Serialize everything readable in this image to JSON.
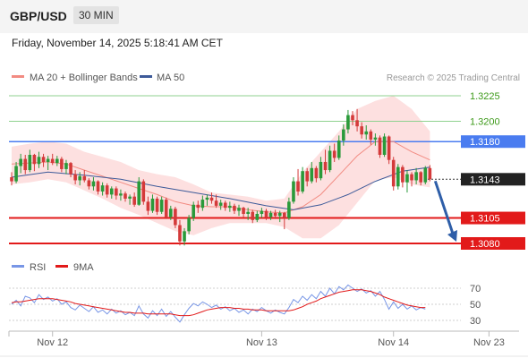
{
  "header": {
    "symbol": "GBP/USD",
    "timeframe": "30 MIN",
    "datetime": "Friday, November 14, 2025 5:18:41 AM CET"
  },
  "chart_data": {
    "type": "candlestick",
    "legend": [
      {
        "name": "MA 20 + Bollinger Bands",
        "color": "#f28b82"
      },
      {
        "name": "MA 50",
        "color": "#3d5a99"
      }
    ],
    "credit": "Research © 2025 Trading Central",
    "price_levels": [
      {
        "label": "1.3225",
        "value": 1.3225,
        "kind": "line-green"
      },
      {
        "label": "1.3200",
        "value": 1.32,
        "kind": "line-green"
      },
      {
        "label": "1.3180",
        "value": 1.318,
        "kind": "line-blue"
      },
      {
        "label": "1.3143",
        "value": 1.3143,
        "kind": "current"
      },
      {
        "label": "1.3105",
        "value": 1.3105,
        "kind": "line-red"
      },
      {
        "label": "1.3080",
        "value": 1.308,
        "kind": "line-red"
      }
    ],
    "colors": {
      "up": "#2a9a3a",
      "down": "#d43a3a",
      "band": "#fde0e0",
      "ma20": "#f28b82",
      "ma50": "#3d5a99",
      "green_level": "#8fd18f",
      "blue_level": "#4a7cf0",
      "red_level": "#e21a1a",
      "level_label_green": "#3d9a1a",
      "arrow": "#2e5ea8",
      "rsi": "#7896e6",
      "rsi_ma": "#e21a1a"
    },
    "candles": [
      [
        1.3145,
        1.315,
        1.3137,
        1.3141
      ],
      [
        1.3141,
        1.316,
        1.3139,
        1.3156
      ],
      [
        1.3156,
        1.3168,
        1.3149,
        1.3163
      ],
      [
        1.3163,
        1.3167,
        1.3148,
        1.3152
      ],
      [
        1.3152,
        1.3172,
        1.315,
        1.3167
      ],
      [
        1.3167,
        1.3168,
        1.3151,
        1.3158
      ],
      [
        1.3158,
        1.317,
        1.3154,
        1.3165
      ],
      [
        1.3165,
        1.3168,
        1.3155,
        1.316
      ],
      [
        1.316,
        1.3166,
        1.3152,
        1.3163
      ],
      [
        1.3163,
        1.3168,
        1.3157,
        1.3159
      ],
      [
        1.3159,
        1.3166,
        1.3156,
        1.3163
      ],
      [
        1.3163,
        1.3165,
        1.315,
        1.3153
      ],
      [
        1.3153,
        1.3162,
        1.3148,
        1.3159
      ],
      [
        1.3159,
        1.316,
        1.3145,
        1.3148
      ],
      [
        1.3148,
        1.3152,
        1.3138,
        1.3142
      ],
      [
        1.3142,
        1.315,
        1.3137,
        1.3146
      ],
      [
        1.3146,
        1.3152,
        1.314,
        1.3142
      ],
      [
        1.3142,
        1.3144,
        1.3133,
        1.3136
      ],
      [
        1.3136,
        1.3145,
        1.3132,
        1.3141
      ],
      [
        1.3141,
        1.3142,
        1.3128,
        1.3131
      ],
      [
        1.3131,
        1.314,
        1.3127,
        1.3137
      ],
      [
        1.3137,
        1.3139,
        1.3125,
        1.3128
      ],
      [
        1.3128,
        1.3136,
        1.3124,
        1.3134
      ],
      [
        1.3134,
        1.3136,
        1.3123,
        1.3127
      ],
      [
        1.3127,
        1.3133,
        1.3122,
        1.3129
      ],
      [
        1.3129,
        1.3131,
        1.3121,
        1.3124
      ],
      [
        1.3124,
        1.3128,
        1.3118,
        1.3126
      ],
      [
        1.3126,
        1.313,
        1.3116,
        1.3118
      ],
      [
        1.3118,
        1.3145,
        1.3117,
        1.3141
      ],
      [
        1.3141,
        1.3143,
        1.3118,
        1.3121
      ],
      [
        1.3121,
        1.3126,
        1.3108,
        1.3112
      ],
      [
        1.3112,
        1.3128,
        1.311,
        1.3124
      ],
      [
        1.3124,
        1.3126,
        1.3108,
        1.3111
      ],
      [
        1.3111,
        1.3126,
        1.3109,
        1.3123
      ],
      [
        1.3123,
        1.3125,
        1.3104,
        1.3106
      ],
      [
        1.3106,
        1.3117,
        1.3103,
        1.3114
      ],
      [
        1.3114,
        1.3116,
        1.3095,
        1.3098
      ],
      [
        1.3098,
        1.3103,
        1.3078,
        1.3082
      ],
      [
        1.3082,
        1.3095,
        1.3078,
        1.3092
      ],
      [
        1.3092,
        1.3108,
        1.3089,
        1.3105
      ],
      [
        1.3105,
        1.3121,
        1.3102,
        1.3118
      ],
      [
        1.3118,
        1.3122,
        1.311,
        1.3115
      ],
      [
        1.3115,
        1.3127,
        1.3112,
        1.3123
      ],
      [
        1.3123,
        1.3128,
        1.3117,
        1.3125
      ],
      [
        1.3125,
        1.313,
        1.3119,
        1.3122
      ],
      [
        1.3122,
        1.3128,
        1.3115,
        1.3117
      ],
      [
        1.3117,
        1.3123,
        1.3113,
        1.312
      ],
      [
        1.312,
        1.3122,
        1.3112,
        1.3115
      ],
      [
        1.3115,
        1.3121,
        1.3111,
        1.3117
      ],
      [
        1.3117,
        1.3119,
        1.3109,
        1.3112
      ],
      [
        1.3112,
        1.3118,
        1.3107,
        1.3115
      ],
      [
        1.3115,
        1.3116,
        1.3106,
        1.3109
      ],
      [
        1.3109,
        1.3115,
        1.3103,
        1.3111
      ],
      [
        1.3111,
        1.3113,
        1.31,
        1.3103
      ],
      [
        1.3103,
        1.3112,
        1.3101,
        1.3109
      ],
      [
        1.3109,
        1.3115,
        1.3105,
        1.3112
      ],
      [
        1.3112,
        1.3114,
        1.3103,
        1.3106
      ],
      [
        1.3106,
        1.3112,
        1.3103,
        1.311
      ],
      [
        1.311,
        1.3113,
        1.3104,
        1.3107
      ],
      [
        1.3107,
        1.3112,
        1.3101,
        1.311
      ],
      [
        1.311,
        1.3111,
        1.3094,
        1.3105
      ],
      [
        1.3105,
        1.3125,
        1.3103,
        1.3121
      ],
      [
        1.3121,
        1.3145,
        1.3119,
        1.3141
      ],
      [
        1.3141,
        1.3153,
        1.3127,
        1.3131
      ],
      [
        1.3131,
        1.3155,
        1.3129,
        1.3151
      ],
      [
        1.3151,
        1.3154,
        1.3136,
        1.3141
      ],
      [
        1.3141,
        1.316,
        1.3139,
        1.3154
      ],
      [
        1.3154,
        1.3156,
        1.314,
        1.3144
      ],
      [
        1.3144,
        1.3165,
        1.3142,
        1.316
      ],
      [
        1.316,
        1.3172,
        1.3148,
        1.3152
      ],
      [
        1.3152,
        1.3176,
        1.315,
        1.3171
      ],
      [
        1.3171,
        1.3178,
        1.316,
        1.3164
      ],
      [
        1.3164,
        1.3186,
        1.3162,
        1.3181
      ],
      [
        1.3181,
        1.3197,
        1.3176,
        1.3192
      ],
      [
        1.3192,
        1.3211,
        1.3188,
        1.3206
      ],
      [
        1.3206,
        1.321,
        1.3196,
        1.3201
      ],
      [
        1.3201,
        1.3212,
        1.319,
        1.3195
      ],
      [
        1.3195,
        1.3199,
        1.3183,
        1.3187
      ],
      [
        1.3187,
        1.3196,
        1.3182,
        1.319
      ],
      [
        1.319,
        1.3192,
        1.3177,
        1.3182
      ],
      [
        1.3182,
        1.3188,
        1.3176,
        1.3184
      ],
      [
        1.3184,
        1.3186,
        1.3164,
        1.3167
      ],
      [
        1.3167,
        1.3188,
        1.3165,
        1.3185
      ],
      [
        1.3185,
        1.3186,
        1.3158,
        1.3162
      ],
      [
        1.3162,
        1.3165,
        1.3132,
        1.3136
      ],
      [
        1.3136,
        1.3158,
        1.3133,
        1.3155
      ],
      [
        1.3155,
        1.3157,
        1.3135,
        1.314
      ],
      [
        1.314,
        1.3152,
        1.313,
        1.3148
      ],
      [
        1.3148,
        1.315,
        1.3136,
        1.3142
      ],
      [
        1.3142,
        1.3154,
        1.3138,
        1.315
      ],
      [
        1.315,
        1.3151,
        1.3137,
        1.314
      ],
      [
        1.314,
        1.3156,
        1.3138,
        1.3154
      ],
      [
        1.3154,
        1.3157,
        1.3141,
        1.3143
      ]
    ],
    "ma20": [
      [
        0,
        1.3158
      ],
      [
        4,
        1.3159
      ],
      [
        8,
        1.316
      ],
      [
        12,
        1.3158
      ],
      [
        16,
        1.3152
      ],
      [
        20,
        1.3146
      ],
      [
        24,
        1.314
      ],
      [
        28,
        1.3134
      ],
      [
        32,
        1.3128
      ],
      [
        36,
        1.3121
      ],
      [
        40,
        1.3117
      ],
      [
        44,
        1.3116
      ],
      [
        48,
        1.3116
      ],
      [
        52,
        1.3113
      ],
      [
        56,
        1.3111
      ],
      [
        60,
        1.311
      ],
      [
        64,
        1.3116
      ],
      [
        68,
        1.3128
      ],
      [
        72,
        1.3147
      ],
      [
        76,
        1.3166
      ],
      [
        80,
        1.318
      ],
      [
        84,
        1.318
      ],
      [
        88,
        1.317
      ],
      [
        92,
        1.3162
      ]
    ],
    "bb_upper": [
      [
        0,
        1.3175
      ],
      [
        4,
        1.3178
      ],
      [
        8,
        1.318
      ],
      [
        12,
        1.3178
      ],
      [
        16,
        1.317
      ],
      [
        20,
        1.3165
      ],
      [
        24,
        1.316
      ],
      [
        28,
        1.3152
      ],
      [
        32,
        1.3148
      ],
      [
        36,
        1.3145
      ],
      [
        40,
        1.3138
      ],
      [
        44,
        1.313
      ],
      [
        48,
        1.3128
      ],
      [
        52,
        1.3126
      ],
      [
        56,
        1.3122
      ],
      [
        60,
        1.3124
      ],
      [
        64,
        1.315
      ],
      [
        68,
        1.317
      ],
      [
        72,
        1.319
      ],
      [
        76,
        1.3212
      ],
      [
        80,
        1.322
      ],
      [
        84,
        1.3225
      ],
      [
        88,
        1.3212
      ],
      [
        92,
        1.319
      ]
    ],
    "bb_lower": [
      [
        0,
        1.3138
      ],
      [
        4,
        1.314
      ],
      [
        8,
        1.3143
      ],
      [
        12,
        1.314
      ],
      [
        16,
        1.3132
      ],
      [
        20,
        1.3124
      ],
      [
        24,
        1.3115
      ],
      [
        28,
        1.3108
      ],
      [
        32,
        1.31
      ],
      [
        36,
        1.3092
      ],
      [
        40,
        1.3088
      ],
      [
        44,
        1.3095
      ],
      [
        48,
        1.31
      ],
      [
        52,
        1.31
      ],
      [
        56,
        1.31
      ],
      [
        60,
        1.3096
      ],
      [
        64,
        1.3085
      ],
      [
        68,
        1.3085
      ],
      [
        72,
        1.3098
      ],
      [
        76,
        1.312
      ],
      [
        80,
        1.3142
      ],
      [
        84,
        1.3145
      ],
      [
        88,
        1.3138
      ],
      [
        92,
        1.3135
      ]
    ],
    "ma50": [
      [
        0,
        1.3145
      ],
      [
        8,
        1.315
      ],
      [
        16,
        1.3147
      ],
      [
        24,
        1.3143
      ],
      [
        32,
        1.3136
      ],
      [
        40,
        1.313
      ],
      [
        48,
        1.3124
      ],
      [
        56,
        1.3117
      ],
      [
        62,
        1.3113
      ],
      [
        68,
        1.3118
      ],
      [
        74,
        1.3128
      ],
      [
        80,
        1.3141
      ],
      [
        86,
        1.3151
      ],
      [
        92,
        1.3155
      ]
    ],
    "forecast_arrow": {
      "from_price": 1.3143,
      "to_price": 1.308
    },
    "rsi": {
      "legend": [
        {
          "name": "RSI",
          "color": "#7896e6"
        },
        {
          "name": "9MA",
          "color": "#e21a1a"
        }
      ],
      "levels": [
        "70",
        "50",
        "30"
      ],
      "level_values": [
        70,
        50,
        30
      ],
      "rsi_values": [
        50,
        55,
        48,
        60,
        58,
        52,
        62,
        56,
        59,
        54,
        57,
        50,
        53,
        46,
        43,
        49,
        45,
        41,
        47,
        40,
        43,
        38,
        44,
        39,
        42,
        37,
        40,
        36,
        48,
        38,
        33,
        42,
        36,
        44,
        35,
        41,
        34,
        28,
        37,
        45,
        51,
        48,
        53,
        50,
        46,
        49,
        44,
        47,
        42,
        45,
        40,
        43,
        38,
        44,
        41,
        46,
        42,
        39,
        43,
        40,
        38,
        46,
        56,
        52,
        60,
        55,
        62,
        57,
        66,
        60,
        70,
        63,
        72,
        68,
        74,
        70,
        66,
        69,
        64,
        67,
        60,
        66,
        56,
        44,
        53,
        45,
        50,
        44,
        48,
        43,
        46,
        44
      ],
      "ma_values": [
        52,
        53,
        53,
        54,
        55,
        56,
        57,
        57,
        57,
        57,
        56,
        55,
        54,
        53,
        51,
        50,
        49,
        48,
        47,
        46,
        45,
        44,
        43,
        42,
        41,
        40,
        40,
        39,
        39,
        39,
        38,
        38,
        38,
        38,
        38,
        38,
        37,
        36,
        36,
        36,
        37,
        39,
        41,
        43,
        44,
        45,
        46,
        46,
        46,
        45,
        45,
        44,
        44,
        43,
        43,
        43,
        42,
        42,
        42,
        42,
        42,
        42,
        43,
        45,
        47,
        50,
        52,
        54,
        57,
        59,
        61,
        63,
        65,
        66,
        67,
        68,
        68,
        68,
        67,
        66,
        64,
        62,
        59,
        57,
        55,
        53,
        51,
        49,
        48,
        47,
        46,
        46
      ]
    },
    "x_axis": {
      "ticks": [
        {
          "label": "Nov 12",
          "index": 9
        },
        {
          "label": "Nov 13",
          "index": 55
        },
        {
          "label": "Nov 14",
          "index": 84
        },
        {
          "label": "Nov 23",
          "index": 105
        }
      ]
    }
  }
}
